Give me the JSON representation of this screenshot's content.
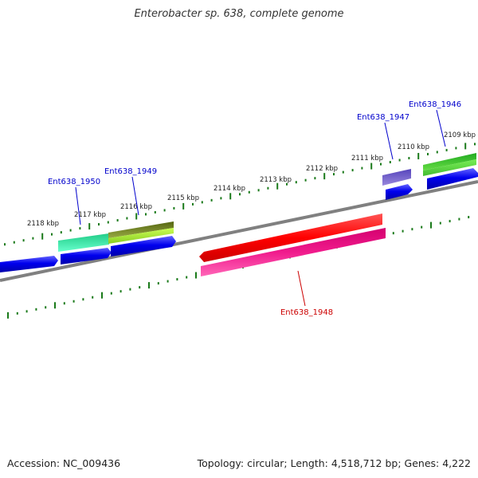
{
  "title": "Enterobacter sp. 638, complete genome",
  "footer": {
    "accession": "Accession: NC_009436",
    "summary": "Topology: circular; Length: 4,518,712 bp; Genes: 4,222"
  },
  "ruler": [
    {
      "label": "2109 kbp"
    },
    {
      "label": "2110 kbp"
    },
    {
      "label": "2111 kbp"
    },
    {
      "label": "2112 kbp"
    },
    {
      "label": "2113 kbp"
    },
    {
      "label": "2114 kbp"
    },
    {
      "label": "2115 kbp"
    },
    {
      "label": "2116 kbp"
    },
    {
      "label": "2117 kbp"
    },
    {
      "label": "2118 kbp"
    }
  ],
  "gene_labels": [
    {
      "name": "Ent638_1946",
      "color": "#0000cc"
    },
    {
      "name": "Ent638_1947",
      "color": "#0000cc"
    },
    {
      "name": "Ent638_1948",
      "color": "#cc0000"
    },
    {
      "name": "Ent638_1949",
      "color": "#0000cc"
    },
    {
      "name": "Ent638_1950",
      "color": "#0000cc"
    }
  ],
  "colors": {
    "backbone": "#808080",
    "tick": "#1a7a1a",
    "cds_forward": "#0000ee",
    "cds_reverse": "#ff0000",
    "gene_1946": "#33bb33",
    "gene_1947": "#7766cc",
    "gene_1948_misc": "#ee1188",
    "gene_1949": "#778822",
    "gene_1949_misc": "#aaee33",
    "gene_1950": "#22dd99"
  }
}
